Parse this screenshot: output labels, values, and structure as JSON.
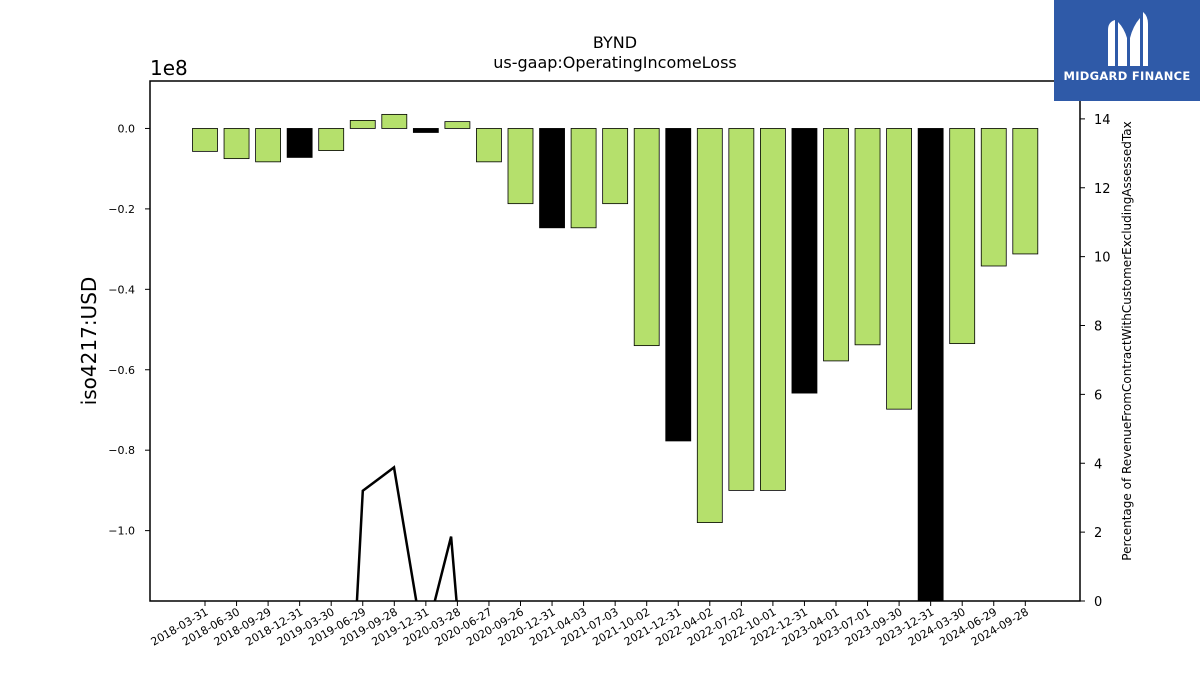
{
  "chart_data": {
    "type": "bar",
    "title": "BYND",
    "subtitle": "us-gaap:OperatingIncomeLoss",
    "ylabel": "iso4217:USD",
    "y2label": "Percentage of RevenueFromContractWithCustomerExcludingAssessedTax",
    "y_offset_label": "1e8",
    "ylim": [
      -1.175,
      0.118
    ],
    "y_ticks": [
      0.0,
      -0.2,
      -0.4,
      -0.6,
      -0.8,
      -1.0
    ],
    "y_tick_labels": [
      "0.0",
      "−0.2",
      "−0.4",
      "−0.6",
      "−0.8",
      "−1.0"
    ],
    "y2lim": [
      0,
      15.1
    ],
    "y2_ticks": [
      0,
      2,
      4,
      6,
      8,
      10,
      12,
      14
    ],
    "y2_tick_labels": [
      "0",
      "2",
      "4",
      "6",
      "8",
      "10",
      "12",
      "14"
    ],
    "categories": [
      "2018-03-31",
      "2018-06-30",
      "2018-09-29",
      "2018-12-31",
      "2019-03-30",
      "2019-06-29",
      "2019-09-28",
      "2019-12-31",
      "2020-03-28",
      "2020-06-27",
      "2020-09-26",
      "2020-12-31",
      "2021-04-03",
      "2021-07-03",
      "2021-10-02",
      "2021-12-31",
      "2022-04-02",
      "2022-07-02",
      "2022-10-01",
      "2022-12-31",
      "2023-04-01",
      "2023-07-01",
      "2023-09-30",
      "2023-12-31",
      "2024-03-30",
      "2024-06-29",
      "2024-09-28"
    ],
    "values": [
      -0.057,
      -0.075,
      -0.083,
      -0.072,
      -0.055,
      0.02,
      0.035,
      -0.01,
      0.017,
      -0.083,
      -0.187,
      -0.247,
      -0.247,
      -0.187,
      -0.54,
      -0.777,
      -0.98,
      -0.9,
      -0.9,
      -0.658,
      -0.578,
      -0.538,
      -0.698,
      -1.2,
      -0.535,
      -0.342,
      -0.312
    ],
    "bar_colors": [
      "#b5e06c",
      "#b5e06c",
      "#b5e06c",
      "#000000",
      "#b5e06c",
      "#b5e06c",
      "#b5e06c",
      "#000000",
      "#b5e06c",
      "#b5e06c",
      "#b5e06c",
      "#000000",
      "#b5e06c",
      "#b5e06c",
      "#b5e06c",
      "#000000",
      "#b5e06c",
      "#b5e06c",
      "#b5e06c",
      "#000000",
      "#b5e06c",
      "#b5e06c",
      "#b5e06c",
      "#000000",
      "#b5e06c",
      "#b5e06c",
      "#b5e06c"
    ],
    "line": {
      "x_index": [
        4.8,
        5.0,
        5.99,
        6.75,
        7.2,
        7.8,
        8.0
      ],
      "values": [
        -0.3,
        3.2,
        3.88,
        -0.3,
        -0.3,
        1.87,
        -0.3
      ]
    },
    "grid": false,
    "legend": "none"
  },
  "brand": {
    "name": "MIDGARD FINANCE",
    "color": "#2f5aa8",
    "icon": "midgard-logo-icon"
  }
}
